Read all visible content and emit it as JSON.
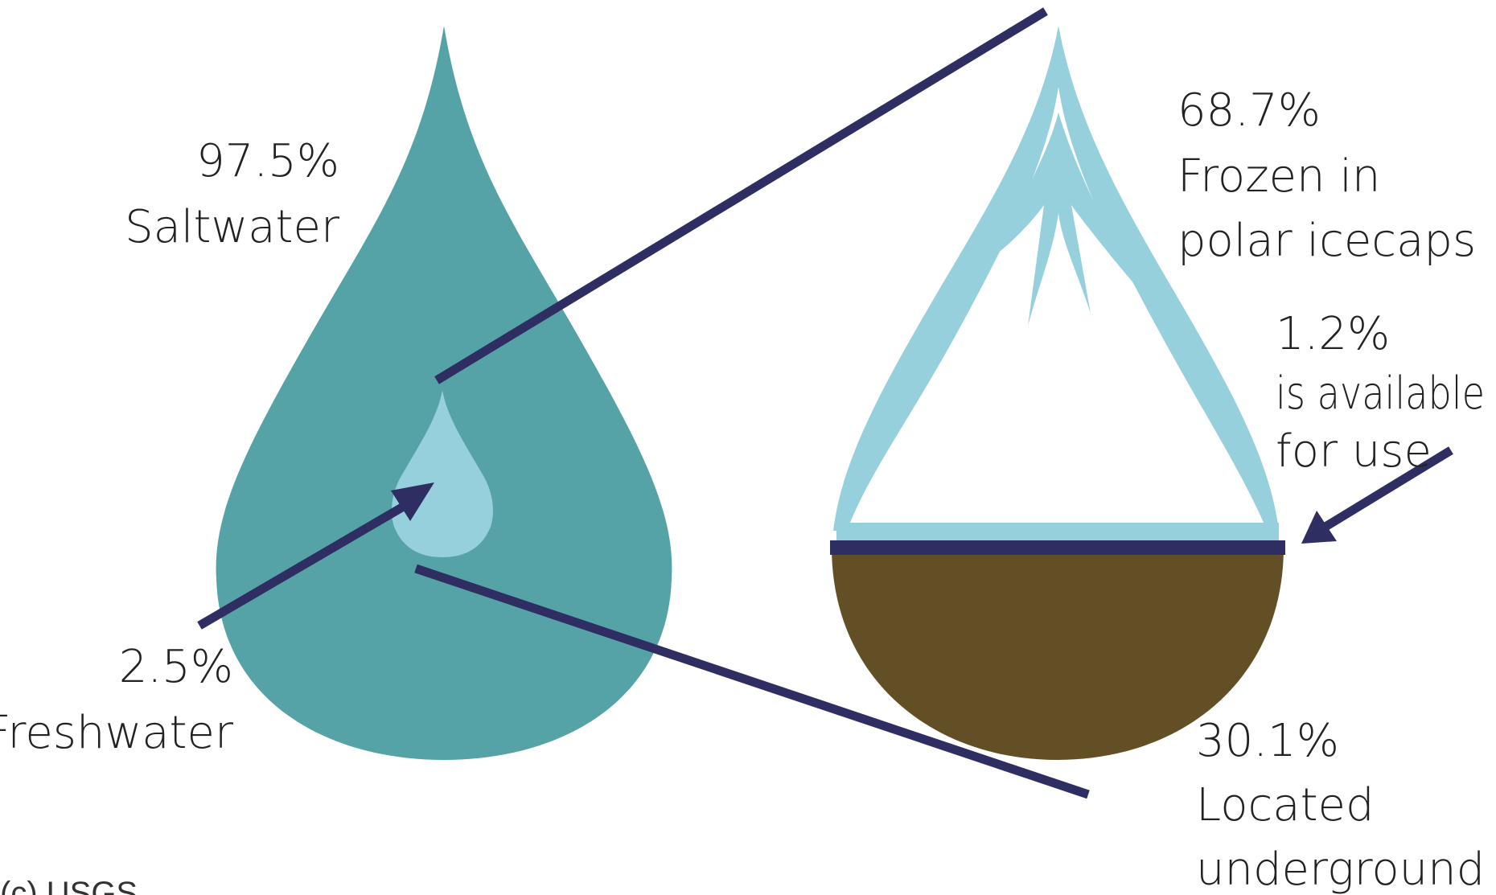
{
  "colors": {
    "saltwater": "#55A3A6",
    "freshwater": "#96D0DD",
    "ice": "#96D0DD",
    "underground": "#624F25",
    "lines": "#2E2E63"
  },
  "saltwater": {
    "percent": "97.5%",
    "label": "Saltwater"
  },
  "freshwater": {
    "percent": "2.5%",
    "label": "Freshwater"
  },
  "icecaps": {
    "percent": "68.7%",
    "line1": "Frozen in",
    "line2": "polar icecaps"
  },
  "available": {
    "percent": "1.2%",
    "line1": "is available",
    "line2": "for use"
  },
  "underground": {
    "percent": "30.1%",
    "line1": "Located",
    "line2": "underground"
  },
  "credit": "(c) USGS"
}
